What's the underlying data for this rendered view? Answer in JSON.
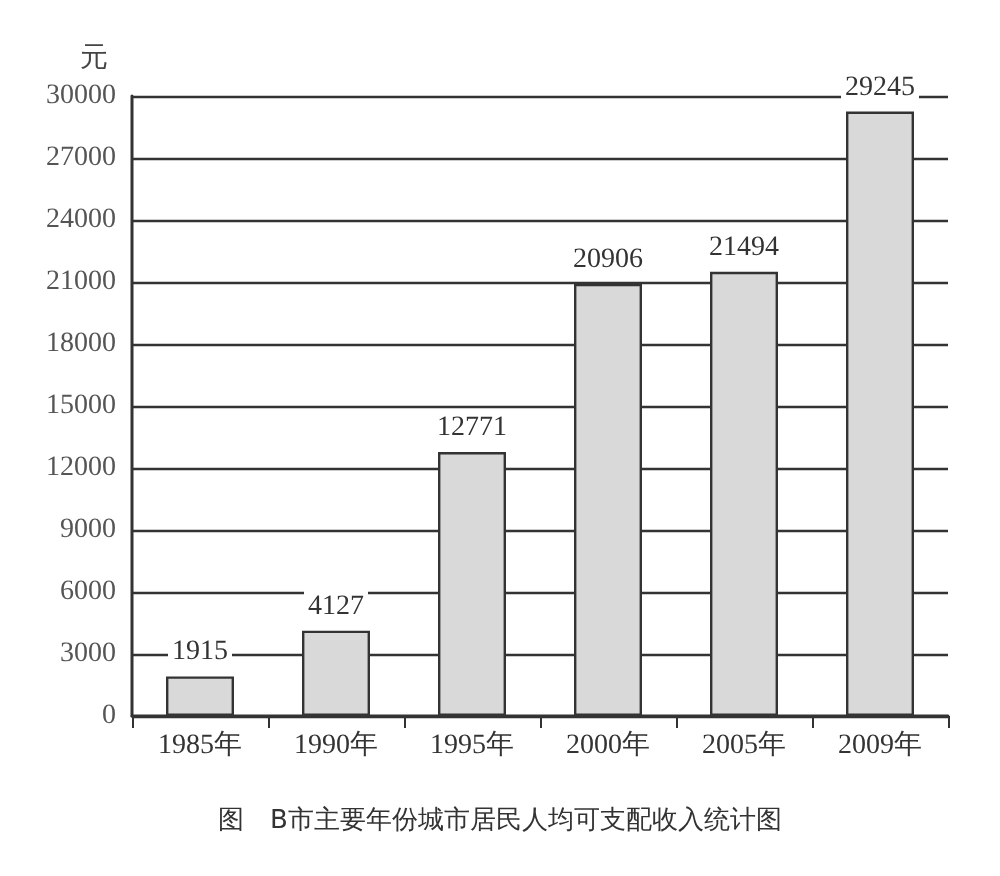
{
  "chart_data": {
    "type": "bar",
    "title": "图　B市主要年份城市居民人均可支配收入统计图",
    "ylabel": "元",
    "categories": [
      "1985年",
      "1990年",
      "1995年",
      "2000年",
      "2005年",
      "2009年"
    ],
    "values": [
      1915,
      4127,
      12771,
      20906,
      21494,
      29245
    ],
    "color": "#d9d9d9",
    "ylim": [
      0,
      30000
    ],
    "yticks": [
      0,
      3000,
      6000,
      9000,
      12000,
      15000,
      18000,
      21000,
      24000,
      27000,
      30000
    ],
    "grid": "y",
    "data_labels": true
  }
}
